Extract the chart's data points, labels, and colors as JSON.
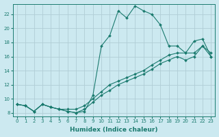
{
  "xlabel": "Humidex (Indice chaleur)",
  "ylabel": "",
  "background_color": "#cce9f0",
  "grid_color": "#b0cdd5",
  "line_color": "#1a7a6e",
  "xlim": [
    -0.5,
    23.5
  ],
  "ylim": [
    7.5,
    23.5
  ],
  "yticks": [
    8,
    10,
    12,
    14,
    16,
    18,
    20,
    22
  ],
  "xticks": [
    0,
    1,
    2,
    3,
    4,
    5,
    6,
    7,
    8,
    9,
    10,
    11,
    12,
    13,
    14,
    15,
    16,
    17,
    18,
    19,
    20,
    21,
    22,
    23
  ],
  "line1_x": [
    0,
    1,
    2,
    3,
    4,
    5,
    6,
    7,
    8,
    9,
    10,
    11,
    12,
    13,
    14,
    15,
    16,
    17,
    18,
    19,
    20,
    21,
    22,
    23
  ],
  "line1_y": [
    9.2,
    9.0,
    8.2,
    9.2,
    8.8,
    8.5,
    8.2,
    8.0,
    8.2,
    10.5,
    17.5,
    19.0,
    22.5,
    21.5,
    23.2,
    22.5,
    22.0,
    20.5,
    17.5,
    17.5,
    16.5,
    18.2,
    18.5,
    16.0
  ],
  "line2_x": [
    0,
    1,
    2,
    3,
    4,
    5,
    6,
    7,
    8,
    9,
    10,
    11,
    12,
    13,
    14,
    15,
    16,
    17,
    18,
    19,
    20,
    21,
    22,
    23
  ],
  "line2_y": [
    9.2,
    9.0,
    8.2,
    9.2,
    8.8,
    8.5,
    8.5,
    8.5,
    9.0,
    10.0,
    11.0,
    12.0,
    12.5,
    13.0,
    13.5,
    14.0,
    14.8,
    15.5,
    16.2,
    16.5,
    16.5,
    16.5,
    17.5,
    16.0
  ],
  "line3_x": [
    0,
    1,
    2,
    3,
    4,
    5,
    6,
    7,
    8,
    9,
    10,
    11,
    12,
    13,
    14,
    15,
    16,
    17,
    18,
    19,
    20,
    21,
    22,
    23
  ],
  "line3_y": [
    9.2,
    9.0,
    8.2,
    9.2,
    8.8,
    8.5,
    8.2,
    8.0,
    8.5,
    9.5,
    10.5,
    11.2,
    12.0,
    12.5,
    13.0,
    13.5,
    14.2,
    15.0,
    15.5,
    16.0,
    15.5,
    16.0,
    17.5,
    16.5
  ]
}
